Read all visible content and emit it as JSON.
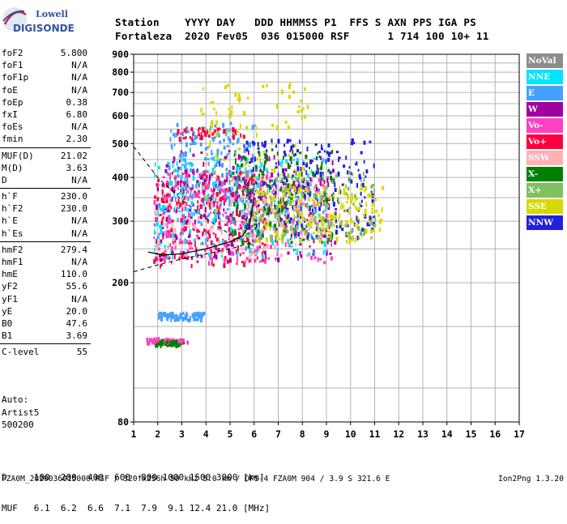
{
  "logo": {
    "line1": "Lowell",
    "line2": "DIGISONDE"
  },
  "header": {
    "line1": "Station    YYYY DAY   DDD HHMMSS P1  FFS S AXN PPS IGA PS",
    "line2": "Fortaleza  2020 Fev05  036 015000 RSF      1 714 100 10+ 11"
  },
  "params": {
    "group1": [
      {
        "label": "foF2",
        "value": "5.800"
      },
      {
        "label": "foF1",
        "value": "N/A"
      },
      {
        "label": "foF1p",
        "value": "N/A"
      },
      {
        "label": "foE",
        "value": "N/A"
      },
      {
        "label": "foEp",
        "value": "0.38"
      },
      {
        "label": "fxI",
        "value": "6.80"
      },
      {
        "label": "foEs",
        "value": "N/A"
      },
      {
        "label": "fmin",
        "value": "2.30"
      }
    ],
    "group2": [
      {
        "label": "MUF(D)",
        "value": "21.02"
      },
      {
        "label": "M(D)",
        "value": "3.63"
      },
      {
        "label": "D",
        "value": "N/A"
      }
    ],
    "group3": [
      {
        "label": "h`F",
        "value": "230.0"
      },
      {
        "label": "h`F2",
        "value": "230.0"
      },
      {
        "label": "h`E",
        "value": "N/A"
      },
      {
        "label": "h`Es",
        "value": "N/A"
      }
    ],
    "group4": [
      {
        "label": "hmF2",
        "value": "279.4"
      },
      {
        "label": "hmF1",
        "value": "N/A"
      },
      {
        "label": "hmE",
        "value": "110.0"
      },
      {
        "label": "yF2",
        "value": "55.6"
      },
      {
        "label": "yF1",
        "value": "N/A"
      },
      {
        "label": "yE",
        "value": "20.0"
      },
      {
        "label": "B0",
        "value": "47.6"
      },
      {
        "label": "B1",
        "value": "3.69"
      }
    ],
    "group5": [
      {
        "label": "C-level",
        "value": "55"
      }
    ]
  },
  "auto": {
    "line1": "Auto:",
    "line2": "Artist5",
    "line3": "500200"
  },
  "legend": [
    {
      "label": "NoVal",
      "color": "#8c8c8c",
      "text_color": "#ffffff"
    },
    {
      "label": "NNE",
      "color": "#00e5ff",
      "text_color": "#ffffff"
    },
    {
      "label": "E",
      "color": "#46a0ff",
      "text_color": "#ffffff"
    },
    {
      "label": "W",
      "color": "#a000a0",
      "text_color": "#ffffff"
    },
    {
      "label": "Vo-",
      "color": "#ff40c0",
      "text_color": "#ffffff"
    },
    {
      "label": "Vo+",
      "color": "#ff0040",
      "text_color": "#ffffff"
    },
    {
      "label": "SSW",
      "color": "#ffb0b0",
      "text_color": "#ffffff"
    },
    {
      "label": "X-",
      "color": "#008000",
      "text_color": "#ffffff"
    },
    {
      "label": "X+",
      "color": "#80c060",
      "text_color": "#ffffff"
    },
    {
      "label": "SSE",
      "color": "#d8d800",
      "text_color": "#ffffff"
    },
    {
      "label": "NNW",
      "color": "#2020e0",
      "text_color": "#ffffff"
    }
  ],
  "bottom": {
    "d_line": "D     100  200  400  600  800 1000 1500 3000 [km]",
    "muf_line": "MUF   6.1  6.2  6.6  7.1  7.9  9.1 12.4 21.0 [MHz]",
    "footer": "FZA0M_2020036015000.RSF / 320fx256h 50 kHz 5.0 km / DPS-4 FZA0M 904 / 3.9 S 321.6 E",
    "version": "Ion2Png 1.3.20"
  },
  "chart_data": {
    "type": "scatter",
    "title": "",
    "xlabel": "",
    "ylabel": "",
    "xlim": [
      1,
      17
    ],
    "ylim": [
      80,
      900
    ],
    "x_ticks": [
      1,
      2,
      3,
      4,
      5,
      6,
      7,
      8,
      9,
      10,
      11,
      12,
      13,
      14,
      15,
      16,
      17
    ],
    "y_ticks": [
      80,
      200,
      300,
      400,
      500,
      600,
      700,
      800,
      900
    ],
    "y_scale": "log",
    "grid": true,
    "legend_position": "right",
    "clusters": [
      {
        "name": "E",
        "x_range": [
          2.4,
          6.0
        ],
        "y_range": [
          300,
          580
        ],
        "count": 260
      },
      {
        "name": "SSE",
        "x_range": [
          3.6,
          8.2
        ],
        "y_range": [
          320,
          760
        ],
        "count": 150
      },
      {
        "name": "Vo+",
        "x_range": [
          1.8,
          6.5
        ],
        "y_range": [
          225,
          420
        ],
        "count": 280
      },
      {
        "name": "Vo-",
        "x_range": [
          1.8,
          9.2
        ],
        "y_range": [
          230,
          420
        ],
        "count": 300
      },
      {
        "name": "W",
        "x_range": [
          1.9,
          9.5
        ],
        "y_range": [
          235,
          480
        ],
        "count": 280
      },
      {
        "name": "NNE",
        "x_range": [
          1.8,
          9.0
        ],
        "y_range": [
          240,
          460
        ],
        "count": 250
      },
      {
        "name": "NNW",
        "x_range": [
          5.5,
          11.0
        ],
        "y_range": [
          270,
          520
        ],
        "count": 260
      },
      {
        "name": "SSE",
        "x_range": [
          6.0,
          11.3
        ],
        "y_range": [
          265,
          380
        ],
        "count": 220
      },
      {
        "name": "X-",
        "x_range": [
          5.0,
          9.3
        ],
        "y_range": [
          260,
          480
        ],
        "count": 120
      },
      {
        "name": "X+",
        "x_range": [
          5.5,
          11.0
        ],
        "y_range": [
          270,
          420
        ],
        "count": 120
      },
      {
        "name": "SSW",
        "x_range": [
          1.8,
          8.5
        ],
        "y_range": [
          240,
          360
        ],
        "count": 100
      },
      {
        "name": "E",
        "x_range": [
          2.0,
          3.9
        ],
        "y_range": [
          158,
          166
        ],
        "count": 90
      },
      {
        "name": "Vo-",
        "x_range": [
          1.5,
          3.2
        ],
        "y_range": [
          135,
          140
        ],
        "count": 70
      },
      {
        "name": "X-",
        "x_range": [
          1.8,
          3.2
        ],
        "y_range": [
          133,
          138
        ],
        "count": 40
      },
      {
        "name": "Vo+",
        "x_range": [
          2.8,
          5.6
        ],
        "y_range": [
          520,
          560
        ],
        "count": 40
      }
    ],
    "profile_curve": [
      [
        1.6,
        245
      ],
      [
        2.2,
        240
      ],
      [
        3.0,
        242
      ],
      [
        4.0,
        250
      ],
      [
        5.0,
        262
      ],
      [
        5.5,
        272
      ],
      [
        5.8,
        290
      ],
      [
        6.0,
        350
      ]
    ],
    "dashed_curves": [
      [
        [
          1.0,
          490
        ],
        [
          2.0,
          400
        ],
        [
          3.0,
          345
        ],
        [
          4.0,
          305
        ],
        [
          5.0,
          275
        ],
        [
          6.0,
          255
        ]
      ],
      [
        [
          1.0,
          215
        ],
        [
          2.0,
          225
        ],
        [
          3.0,
          234
        ],
        [
          4.0,
          242
        ],
        [
          5.0,
          250
        ],
        [
          6.0,
          262
        ]
      ]
    ]
  }
}
